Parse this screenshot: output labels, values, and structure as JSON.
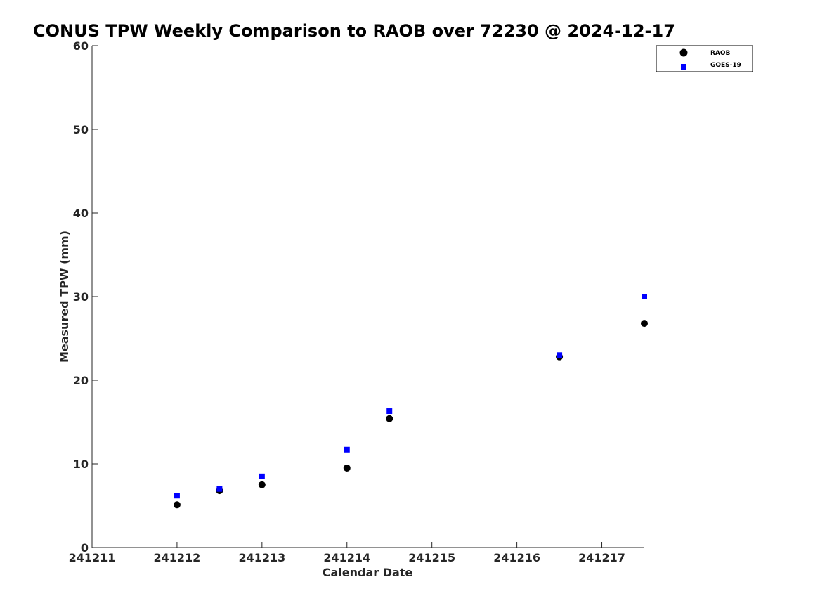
{
  "chart_data": {
    "type": "scatter",
    "title": "CONUS TPW Weekly Comparison to RAOB over 72230 @ 2024-12-17",
    "xlabel": "Calendar Date",
    "ylabel": "Measured TPW (mm)",
    "xlim": [
      241211,
      241217.5
    ],
    "ylim": [
      0,
      60
    ],
    "x_ticks": [
      241211,
      241212,
      241213,
      241214,
      241215,
      241216,
      241217
    ],
    "x_tick_labels": [
      "241211",
      "241212",
      "241213",
      "241214",
      "241215",
      "241216",
      "241217"
    ],
    "y_ticks": [
      0,
      10,
      20,
      30,
      40,
      50,
      60
    ],
    "y_tick_labels": [
      "0",
      "10",
      "20",
      "30",
      "40",
      "50",
      "60"
    ],
    "grid": false,
    "legend_position": "top-right",
    "series": [
      {
        "name": "RAOB",
        "marker": "circle",
        "color": "#000000",
        "x": [
          241212.0,
          241212.5,
          241213.0,
          241214.0,
          241214.5,
          241216.5,
          241217.5
        ],
        "y": [
          5.1,
          6.8,
          7.5,
          9.5,
          15.4,
          22.8,
          26.8
        ]
      },
      {
        "name": "GOES-19",
        "marker": "square",
        "color": "#0000ff",
        "x": [
          241212.0,
          241212.5,
          241213.0,
          241214.0,
          241214.5,
          241216.5,
          241217.5
        ],
        "y": [
          6.2,
          7.0,
          8.5,
          11.7,
          16.3,
          23.0,
          30.0
        ]
      }
    ]
  }
}
